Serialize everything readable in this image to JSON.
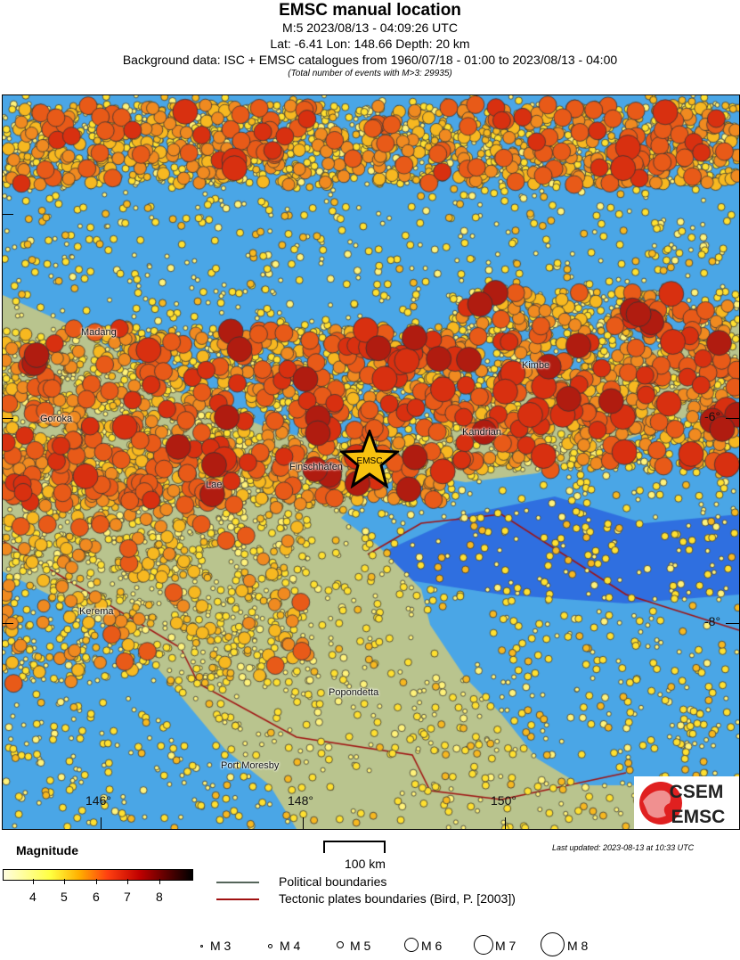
{
  "header": {
    "title": "EMSC manual location",
    "event": "M:5 2023/08/13 - 04:09:26 UTC",
    "location": "Lat: -6.41 Lon: 148.66 Depth: 20 km",
    "background": "Background data: ISC + EMSC catalogues from 1960/07/18 - 01:00 to 2023/08/13 - 04:00",
    "total": "(Total number of events with M>3: 29935)"
  },
  "map": {
    "towns": [
      "Madang",
      "Goroka",
      "Lae",
      "Finschhafen",
      "Kimbe",
      "Kandrian",
      "Kerema",
      "Popondetta",
      "Port Moresby"
    ],
    "lon_labels": [
      "146°",
      "148°",
      "150°"
    ],
    "lat_labels": [
      "-6°",
      "-8°"
    ],
    "epicenter_label": "EMSC",
    "logo": [
      "CSEM",
      "EMSC"
    ],
    "colors": {
      "sea": "#4aa6e6",
      "deep_sea": "#2f6fe0",
      "land": "#b9c48e",
      "plate_boundary": "#a01010"
    }
  },
  "legend": {
    "magnitude_title": "Magnitude",
    "colorbar_ticks": [
      "4",
      "5",
      "6",
      "7",
      "8"
    ],
    "scale": "100 km",
    "political": "Political boundaries",
    "tectonic": "Tectonic plates boundaries (Bird, P. [2003])",
    "last_updated": "Last updated: 2023-08-13 at 10:33 UTC",
    "sizes": [
      "M 3",
      "M 4",
      "M 5",
      "M 6",
      "M 7",
      "M 8"
    ]
  }
}
